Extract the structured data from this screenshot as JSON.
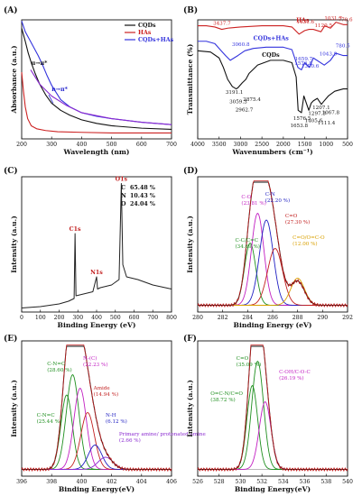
{
  "figure_title": "",
  "chart_data": [
    {
      "panel": "(A)",
      "type": "line",
      "xlabel": "Wavelength (nm)",
      "ylabel": "Absorbance (a.u.)",
      "xlim": [
        200,
        700
      ],
      "xticks": [
        200,
        300,
        400,
        500,
        600,
        700
      ],
      "legend": "top-right",
      "annotations": [
        {
          "text": "π→π*",
          "x": 232,
          "y": 0.62,
          "color": "#111111"
        },
        {
          "text": "n→π*",
          "x": 300,
          "y": 0.4,
          "color": "#2222cc"
        }
      ],
      "series": [
        {
          "name": "CQDs",
          "color": "#111111",
          "x": [
            200,
            212,
            222,
            232,
            245,
            260,
            280,
            300,
            330,
            360,
            400,
            450,
            500,
            600,
            700
          ],
          "y": [
            0.93,
            0.82,
            0.72,
            0.64,
            0.55,
            0.46,
            0.37,
            0.3,
            0.24,
            0.2,
            0.16,
            0.13,
            0.11,
            0.09,
            0.08
          ]
        },
        {
          "name": "HAs",
          "color": "#cc2222",
          "x": [
            200,
            206,
            212,
            220,
            232,
            250,
            280,
            320,
            400,
            500,
            600,
            700
          ],
          "y": [
            0.56,
            0.4,
            0.27,
            0.17,
            0.11,
            0.085,
            0.07,
            0.06,
            0.055,
            0.05,
            0.05,
            0.05
          ]
        },
        {
          "name": "CQDs+HAs",
          "color": "#3333dd",
          "x": [
            200,
            212,
            225,
            240,
            255,
            270,
            285,
            300,
            315,
            330,
            360,
            400,
            450,
            500,
            600,
            700
          ],
          "y": [
            0.99,
            0.9,
            0.84,
            0.77,
            0.7,
            0.62,
            0.53,
            0.45,
            0.39,
            0.33,
            0.27,
            0.22,
            0.19,
            0.17,
            0.14,
            0.12
          ]
        },
        {
          "name": "",
          "color": "#8a2ad0",
          "x": [
            230,
            260,
            300,
            350,
            400,
            500,
            600,
            700
          ],
          "y": [
            0.58,
            0.46,
            0.36,
            0.28,
            0.22,
            0.17,
            0.14,
            0.12
          ]
        }
      ]
    },
    {
      "panel": "(B)",
      "type": "line",
      "xlabel": "Wavenumbers (cm⁻¹)",
      "ylabel": "Transmittance (%)",
      "xlim": [
        4000,
        500
      ],
      "xticks": [
        4000,
        3500,
        3000,
        2500,
        2000,
        1500,
        1000,
        500
      ],
      "legend": "inline",
      "series": [
        {
          "name": "HAs",
          "color": "#cc2222",
          "x": [
            4000,
            3800,
            3600,
            3437.7,
            3300,
            3000,
            2500,
            2000,
            1800,
            1631.6,
            1500,
            1400,
            1300,
            1120.5,
            1031.7,
            900,
            770.6,
            600,
            500
          ],
          "y": [
            0.95,
            0.95,
            0.94,
            0.92,
            0.93,
            0.94,
            0.95,
            0.95,
            0.94,
            0.88,
            0.91,
            0.92,
            0.92,
            0.9,
            0.95,
            0.93,
            0.98,
            0.96,
            0.96
          ]
        },
        {
          "name": "CQDs+HAs",
          "color": "#3333dd",
          "x": [
            4000,
            3800,
            3600,
            3450,
            3350,
            3240,
            3060.8,
            2900,
            2700,
            2400,
            2000,
            1800,
            1659.7,
            1576.8,
            1500,
            1390,
            1300,
            1043.9,
            900,
            780.5,
            600,
            500
          ],
          "y": [
            0.82,
            0.82,
            0.8,
            0.74,
            0.7,
            0.66,
            0.7,
            0.74,
            0.76,
            0.77,
            0.77,
            0.75,
            0.6,
            0.58,
            0.64,
            0.6,
            0.68,
            0.62,
            0.66,
            0.72,
            0.7,
            0.7
          ]
        },
        {
          "name": "CQDs",
          "color": "#111111",
          "x": [
            4000,
            3700,
            3500,
            3400,
            3300,
            3191.1,
            3100,
            3059.3,
            2962.7,
            2875.4,
            2800,
            2600,
            2300,
            2000,
            1800,
            1700,
            1653.8,
            1576.5,
            1520,
            1405.6,
            1350,
            1297.3,
            1207.1,
            1111.4,
            1067.8,
            950,
            800,
            600,
            500
          ],
          "y": [
            0.74,
            0.73,
            0.68,
            0.6,
            0.5,
            0.44,
            0.42,
            0.43,
            0.47,
            0.5,
            0.55,
            0.62,
            0.66,
            0.66,
            0.64,
            0.52,
            0.24,
            0.22,
            0.36,
            0.24,
            0.3,
            0.32,
            0.34,
            0.29,
            0.31,
            0.36,
            0.4,
            0.42,
            0.42
          ]
        }
      ],
      "peak_labels": [
        "3437.7",
        "1631.6",
        "1120.5",
        "1031.7",
        "770.6",
        "3060.8",
        "1659.7",
        "1576.8",
        "1390.6",
        "1043.9",
        "780.5",
        "3191.1",
        "3059.3",
        "2962.7",
        "2875.4",
        "1653.8",
        "1576.5",
        "1405.6",
        "1297.3",
        "1207.1",
        "1111.4",
        "1067.8"
      ]
    },
    {
      "panel": "(C)",
      "type": "line",
      "xlabel": "Binding Energy (eV)",
      "ylabel": "Intensity (a.u.)",
      "xlim": [
        0,
        800
      ],
      "xticks": [
        0,
        100,
        200,
        300,
        400,
        500,
        600,
        700,
        800
      ],
      "composition": [
        {
          "element": "C",
          "percent": "65.48 %"
        },
        {
          "element": "N",
          "percent": "10.43 %"
        },
        {
          "element": "O",
          "percent": "24.04 %"
        }
      ],
      "peaks": [
        {
          "label": "C1s",
          "x": 285,
          "y": 0.58
        },
        {
          "label": "N1s",
          "x": 400,
          "y": 0.26
        },
        {
          "label": "O1s",
          "x": 532,
          "y": 0.95
        }
      ],
      "series": [
        {
          "name": "",
          "color": "#222222",
          "x": [
            0,
            50,
            100,
            150,
            200,
            250,
            280,
            285,
            290,
            320,
            380,
            400,
            405,
            420,
            480,
            520,
            532,
            540,
            560,
            620,
            700,
            800
          ],
          "y": [
            0.03,
            0.035,
            0.04,
            0.05,
            0.06,
            0.08,
            0.1,
            0.58,
            0.12,
            0.13,
            0.15,
            0.26,
            0.17,
            0.18,
            0.2,
            0.24,
            0.95,
            0.35,
            0.26,
            0.24,
            0.2,
            0.17
          ]
        }
      ]
    },
    {
      "panel": "(D)",
      "type": "line",
      "xlabel": "Binding Energy (eV)",
      "ylabel": "Intensity (a.u.)",
      "xlim": [
        280,
        292
      ],
      "xticks": [
        280,
        282,
        284,
        286,
        288,
        290,
        292
      ],
      "components": [
        {
          "label": "C-C/C=C",
          "percent": "(34.69 %)",
          "center": 284.2,
          "amp": 0.46,
          "sigma": 0.45,
          "color": "#1f8f1f"
        },
        {
          "label": "C-O",
          "percent": "(23.81 %)",
          "center": 284.8,
          "amp": 0.68,
          "sigma": 0.5,
          "color": "#c21fc2"
        },
        {
          "label": "C-N",
          "percent": "(22.20 %)",
          "center": 285.5,
          "amp": 0.63,
          "sigma": 0.55,
          "color": "#1f1fc2"
        },
        {
          "label": "C=O",
          "percent": "(27.30 %)",
          "center": 286.2,
          "amp": 0.42,
          "sigma": 0.6,
          "color": "#c21f1f"
        },
        {
          "label": "C=O/O=C-O",
          "percent": "(12.00 %)",
          "center": 288.0,
          "amp": 0.2,
          "sigma": 0.55,
          "color": "#d9a000"
        }
      ],
      "baseline": 0.05
    },
    {
      "panel": "(E)",
      "type": "line",
      "xlabel": "Binding Energy(eV)",
      "ylabel": "Intensity (a.u.)",
      "xlim": [
        396,
        406
      ],
      "xticks": [
        396,
        398,
        400,
        402,
        404,
        406
      ],
      "components": [
        {
          "label": "C-N=C",
          "percent": "(25.44 %)",
          "center": 399.0,
          "amp": 0.55,
          "sigma": 0.38,
          "color": "#1f8f1f"
        },
        {
          "label": "C-N=C",
          "percent": "(28.60 %)",
          "center": 399.4,
          "amp": 0.7,
          "sigma": 0.42,
          "color": "#1f8f1f"
        },
        {
          "label": "N-(C)",
          "percent": "(22.23 %)",
          "center": 399.9,
          "amp": 0.6,
          "sigma": 0.42,
          "color": "#c21fc2"
        },
        {
          "label": "Amide",
          "percent": "(14.94 %)",
          "center": 400.4,
          "amp": 0.42,
          "sigma": 0.45,
          "color": "#c21f1f"
        },
        {
          "label": "N-H",
          "percent": "(6.12 %)",
          "center": 400.9,
          "amp": 0.18,
          "sigma": 0.45,
          "color": "#1f1fc2"
        },
        {
          "label": "Primary amine/ protonated amine",
          "percent": "(2.66 %)",
          "center": 401.6,
          "amp": 0.09,
          "sigma": 0.5,
          "color": "#8a2ad0"
        }
      ],
      "baseline": 0.05
    },
    {
      "panel": "(F)",
      "type": "line",
      "xlabel": "Binding Energy(eV)",
      "ylabel": "Intensity (a.u.)",
      "xlim": [
        526,
        540
      ],
      "xticks": [
        526,
        528,
        530,
        532,
        534,
        536,
        538,
        540
      ],
      "components": [
        {
          "label": "O=C-N/C=O",
          "percent": "(38.72 %)",
          "center": 531.1,
          "amp": 0.62,
          "sigma": 0.5,
          "color": "#1f8f1f"
        },
        {
          "label": "C=O",
          "percent": "(35.09 %)",
          "center": 531.6,
          "amp": 0.8,
          "sigma": 0.55,
          "color": "#1f8f1f"
        },
        {
          "label": "C-OH/C-O-C",
          "percent": "(26.19 %)",
          "center": 532.3,
          "amp": 0.5,
          "sigma": 0.55,
          "color": "#c21fc2"
        }
      ],
      "baseline": 0.05
    }
  ]
}
